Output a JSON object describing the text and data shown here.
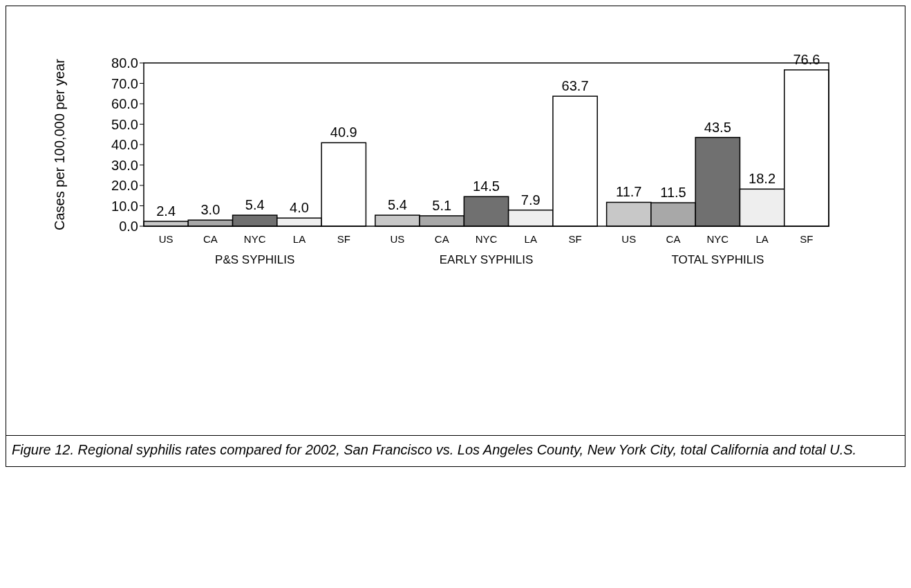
{
  "chart_data": {
    "type": "bar",
    "ylabel": "Cases per 100,000 per year",
    "categories": [
      "P&S SYPHILIS",
      "EARLY SYPHILIS",
      "TOTAL SYPHILIS"
    ],
    "series": [
      {
        "name": "US",
        "color": "#c8c8c8",
        "values": [
          2.4,
          5.4,
          11.7
        ],
        "value_labels": [
          "2.4",
          "5.4",
          "11.7"
        ]
      },
      {
        "name": "CA",
        "color": "#a8a8a8",
        "values": [
          3.0,
          5.1,
          11.5
        ],
        "value_labels": [
          "3.0",
          "5.1",
          "11.5"
        ]
      },
      {
        "name": "NYC",
        "color": "#707070",
        "values": [
          5.4,
          14.5,
          43.5
        ],
        "value_labels": [
          "5.4",
          "14.5",
          "43.5"
        ]
      },
      {
        "name": "LA",
        "color": "#eeeeee",
        "values": [
          4.0,
          7.9,
          18.2
        ],
        "value_labels": [
          "4.0",
          "7.9",
          "18.2"
        ]
      },
      {
        "name": "SF",
        "color": "#ffffff",
        "values": [
          40.9,
          63.7,
          76.6
        ],
        "value_labels": [
          "40.9",
          "63.7",
          "76.6"
        ]
      }
    ],
    "ylim": [
      0,
      80
    ],
    "yticks": [
      {
        "value": 0,
        "label": "0.0"
      },
      {
        "value": 10,
        "label": "10.0"
      },
      {
        "value": 20,
        "label": "20.0"
      },
      {
        "value": 30,
        "label": "30.0"
      },
      {
        "value": 40,
        "label": "40.0"
      },
      {
        "value": 50,
        "label": "50.0"
      },
      {
        "value": 60,
        "label": "60.0"
      },
      {
        "value": 70,
        "label": "70.0"
      },
      {
        "value": 80,
        "label": "80.0"
      }
    ],
    "grid": false,
    "legend": false,
    "annotations": [
      "Figure 12.  Regional syphilis rates compared for 2002, San Francisco vs. Los Angeles County, New York City, total California and total U.S."
    ]
  }
}
